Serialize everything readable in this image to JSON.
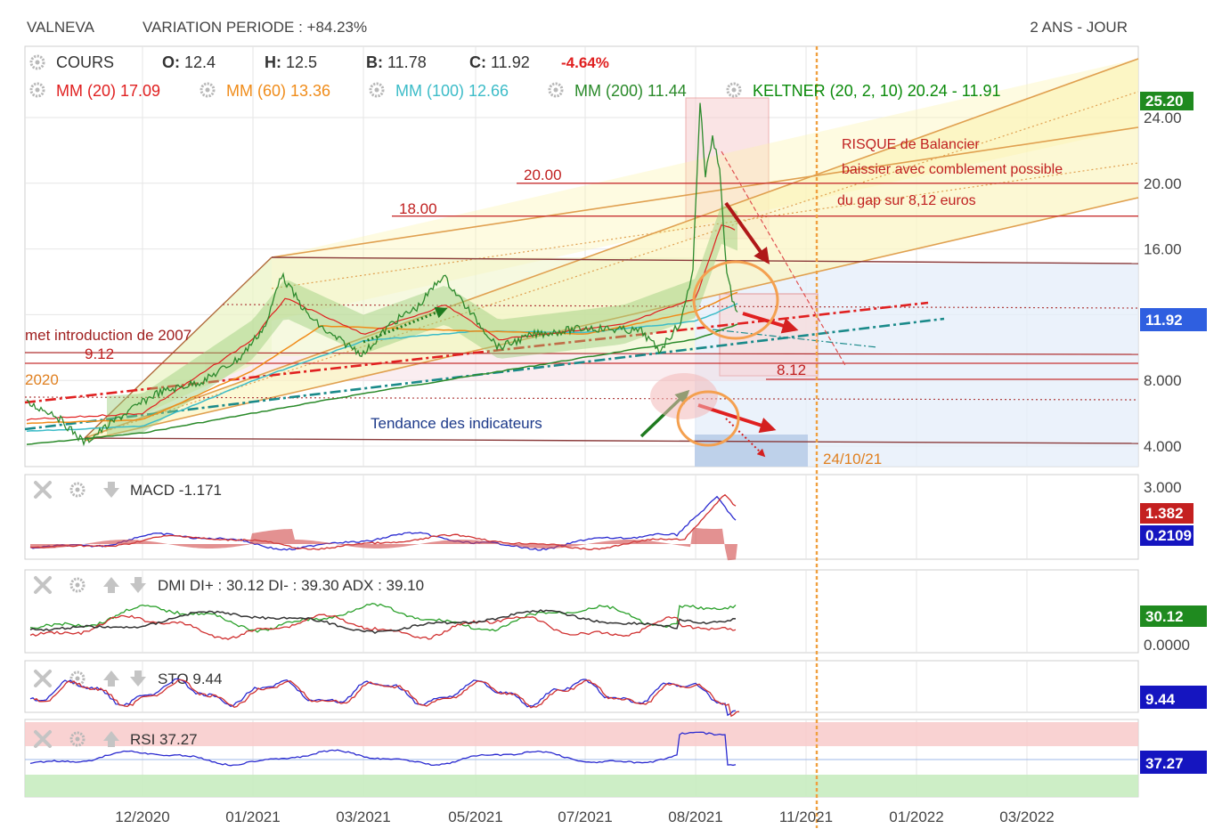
{
  "header": {
    "symbol": "VALNEVA",
    "variation": "VARIATION PERIODE : +84.23%",
    "timeframe": "2 ANS - JOUR"
  },
  "legend": {
    "cours_label": "COURS",
    "ohlc": [
      {
        "k": "O:",
        "v": "12.4"
      },
      {
        "k": "H:",
        "v": "12.5"
      },
      {
        "k": "B:",
        "v": "11.78"
      },
      {
        "k": "C:",
        "v": "11.92"
      }
    ],
    "change": "-4.64%",
    "indicators": [
      {
        "label": "MM (20)",
        "value": "17.09",
        "color": "#e02020"
      },
      {
        "label": "MM (60)",
        "value": "13.36",
        "color": "#f08c1a"
      },
      {
        "label": "MM (100)",
        "value": "12.66",
        "color": "#3cbcc8"
      },
      {
        "label": "MM (200)",
        "value": "11.44",
        "color": "#2a8a2a"
      },
      {
        "label": "KELTNER (20, 2, 10)",
        "value": "20.24 - 11.91",
        "color": "#0a8a0a"
      }
    ]
  },
  "annotations": {
    "risk_line1": "RISQUE de Balancier",
    "risk_line2": "baissier avec comblement possible",
    "risk_line3": "du gap sur 8,12 euros",
    "level_20": "20.00",
    "level_18": "18.00",
    "level_912": "9.12",
    "level_812": "8.12",
    "intro_text": "met introduction de 2007",
    "year_2020": "2020",
    "trend_text": "Tendance des indicateurs",
    "date_marker": "24/10/21"
  },
  "price_axis": {
    "ticks": [
      "24.00",
      "20.00",
      "16.00",
      "8.000",
      "4.000"
    ],
    "badge_high": "25.20",
    "badge_last": "11.92"
  },
  "x_axis": {
    "labels": [
      "12/2020",
      "01/2021",
      "03/2021",
      "05/2021",
      "07/2021",
      "08/2021",
      "11/2021",
      "01/2022",
      "03/2022"
    ]
  },
  "macd": {
    "label": "MACD",
    "value": "-1.171",
    "axis_tick": "3.000",
    "badge_signal": "1.382",
    "badge_macd": "0.2109"
  },
  "dmi": {
    "label": "DMI",
    "value": "DI+ : 30.12 DI- : 39.30 ADX : 39.10",
    "axis_tick": "0.0000",
    "badge": "30.12"
  },
  "sto": {
    "label": "STO",
    "value": "9.44",
    "badge": "9.44"
  },
  "rsi": {
    "label": "RSI",
    "value": "37.27",
    "badge": "37.27"
  },
  "colors": {
    "grid": "#e6e6e6",
    "ma20": "#e02020",
    "ma60": "#f08c1a",
    "ma100": "#3cbcc8",
    "ma200": "#2a8a2a",
    "price": "#2d8a2d",
    "badge_green": "#1f8a1f",
    "badge_blue": "#2f5fe0",
    "badge_red": "#c42020",
    "badge_navy": "#1515c0"
  },
  "chart_data": {
    "type": "line",
    "title": "VALNEVA",
    "x": [
      "12/2020",
      "01/2021",
      "03/2021",
      "05/2021",
      "07/2021",
      "08/2021"
    ],
    "series": [
      {
        "name": "COURS",
        "values": [
          5.6,
          9.6,
          12.2,
          10.2,
          11.3,
          11.92
        ]
      },
      {
        "name": "MM (20)",
        "values": [
          5.8,
          9.4,
          12.4,
          10.5,
          11.0,
          17.09
        ]
      },
      {
        "name": "MM (60)",
        "values": [
          5.3,
          8.6,
          11.6,
          11.0,
          10.8,
          13.36
        ]
      },
      {
        "name": "MM (100)",
        "values": [
          5.0,
          7.8,
          10.6,
          11.1,
          10.9,
          12.66
        ]
      },
      {
        "name": "MM (200)",
        "values": [
          4.6,
          6.5,
          8.4,
          9.4,
          10.3,
          11.44
        ]
      }
    ],
    "ylim": [
      2.8,
      26.5
    ],
    "ylabel": "",
    "xlabel": "",
    "grid": true,
    "legend": "top-left",
    "levels": [
      25.2,
      20.0,
      18.0,
      15.6,
      9.12,
      8.12,
      4.0
    ]
  }
}
